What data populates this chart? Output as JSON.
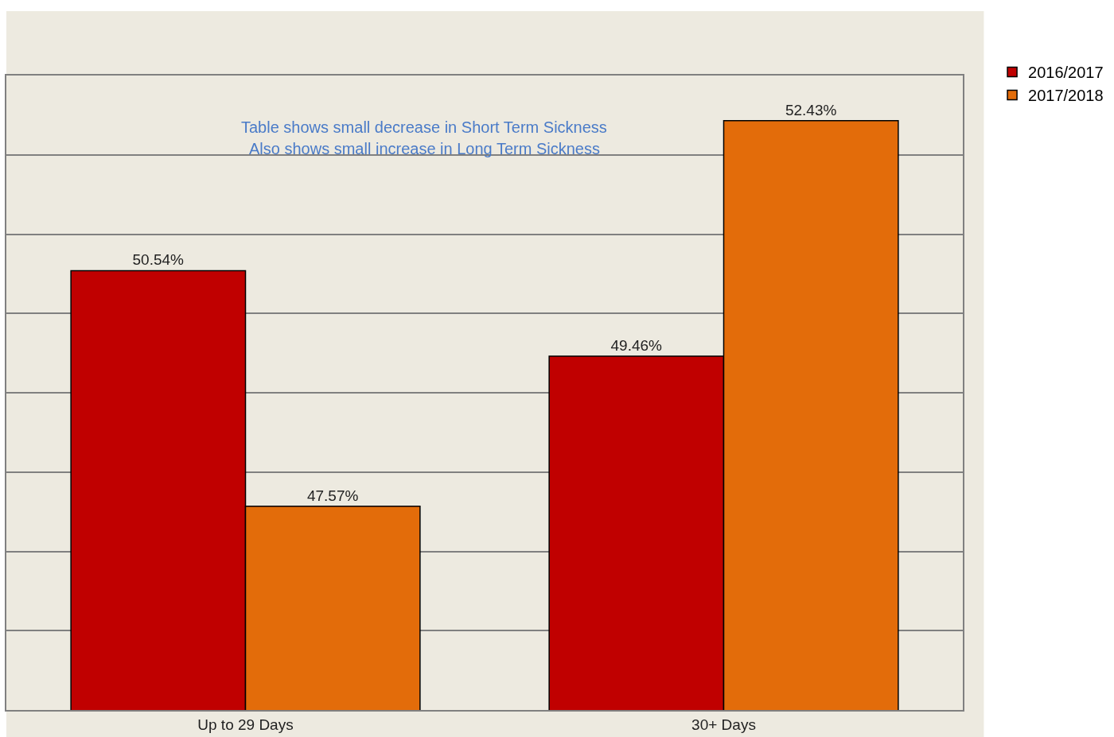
{
  "chart_data": {
    "type": "bar",
    "categories": [
      "Up to 29 Days",
      "30+ Days"
    ],
    "series": [
      {
        "name": "2016/2017",
        "color": "#c00000",
        "values": [
          50.54,
          49.46
        ],
        "value_labels": [
          "50.54%",
          "49.46%"
        ]
      },
      {
        "name": "2017/2018",
        "color": "#e36c0a",
        "values": [
          47.57,
          52.43
        ],
        "value_labels": [
          "47.57%",
          "52.43%"
        ]
      }
    ],
    "ylim": [
      45,
      53
    ],
    "yticks": [
      {
        "value": 45,
        "label": null
      },
      {
        "value": 46,
        "label": null
      },
      {
        "value": 47,
        "label": null
      },
      {
        "value": 48,
        "label": null
      },
      {
        "value": 49,
        "label": null
      },
      {
        "value": 50,
        "label": null
      },
      {
        "value": 51,
        "label": null
      },
      {
        "value": 52,
        "label": null
      },
      {
        "value": 53,
        "label": null
      }
    ],
    "grid": "y",
    "tick_labels": "x",
    "legend": "top right",
    "annotations": [
      "Table shows small decrease in Short Term Sickness",
      "Also shows small increase in Long Term Sickness"
    ]
  }
}
